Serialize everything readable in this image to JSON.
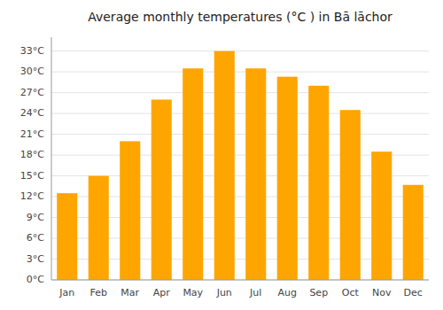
{
  "chart_data": {
    "type": "bar",
    "title": "Average monthly temperatures (°C ) in Bā lāchor",
    "categories": [
      "Jan",
      "Feb",
      "Mar",
      "Apr",
      "May",
      "Jun",
      "Jul",
      "Aug",
      "Sep",
      "Oct",
      "Nov",
      "Dec"
    ],
    "values": [
      12.5,
      15.0,
      20.0,
      26.0,
      30.5,
      33.0,
      30.5,
      29.3,
      28.0,
      24.5,
      18.5,
      13.7
    ],
    "color": "#FFA500",
    "ylim": [
      0,
      35
    ],
    "yticks": [
      {
        "value": 0,
        "label": "0°C"
      },
      {
        "value": 3,
        "label": "3°C"
      },
      {
        "value": 6,
        "label": "6°C"
      },
      {
        "value": 9,
        "label": "9°C"
      },
      {
        "value": 12,
        "label": "12°C"
      },
      {
        "value": 15,
        "label": "15°C"
      },
      {
        "value": 18,
        "label": "18°C"
      },
      {
        "value": 21,
        "label": "21°C"
      },
      {
        "value": 24,
        "label": "24°C"
      },
      {
        "value": 27,
        "label": "27°C"
      },
      {
        "value": 30,
        "label": "30°C"
      },
      {
        "value": 33,
        "label": "33°C"
      }
    ],
    "grid": true
  }
}
